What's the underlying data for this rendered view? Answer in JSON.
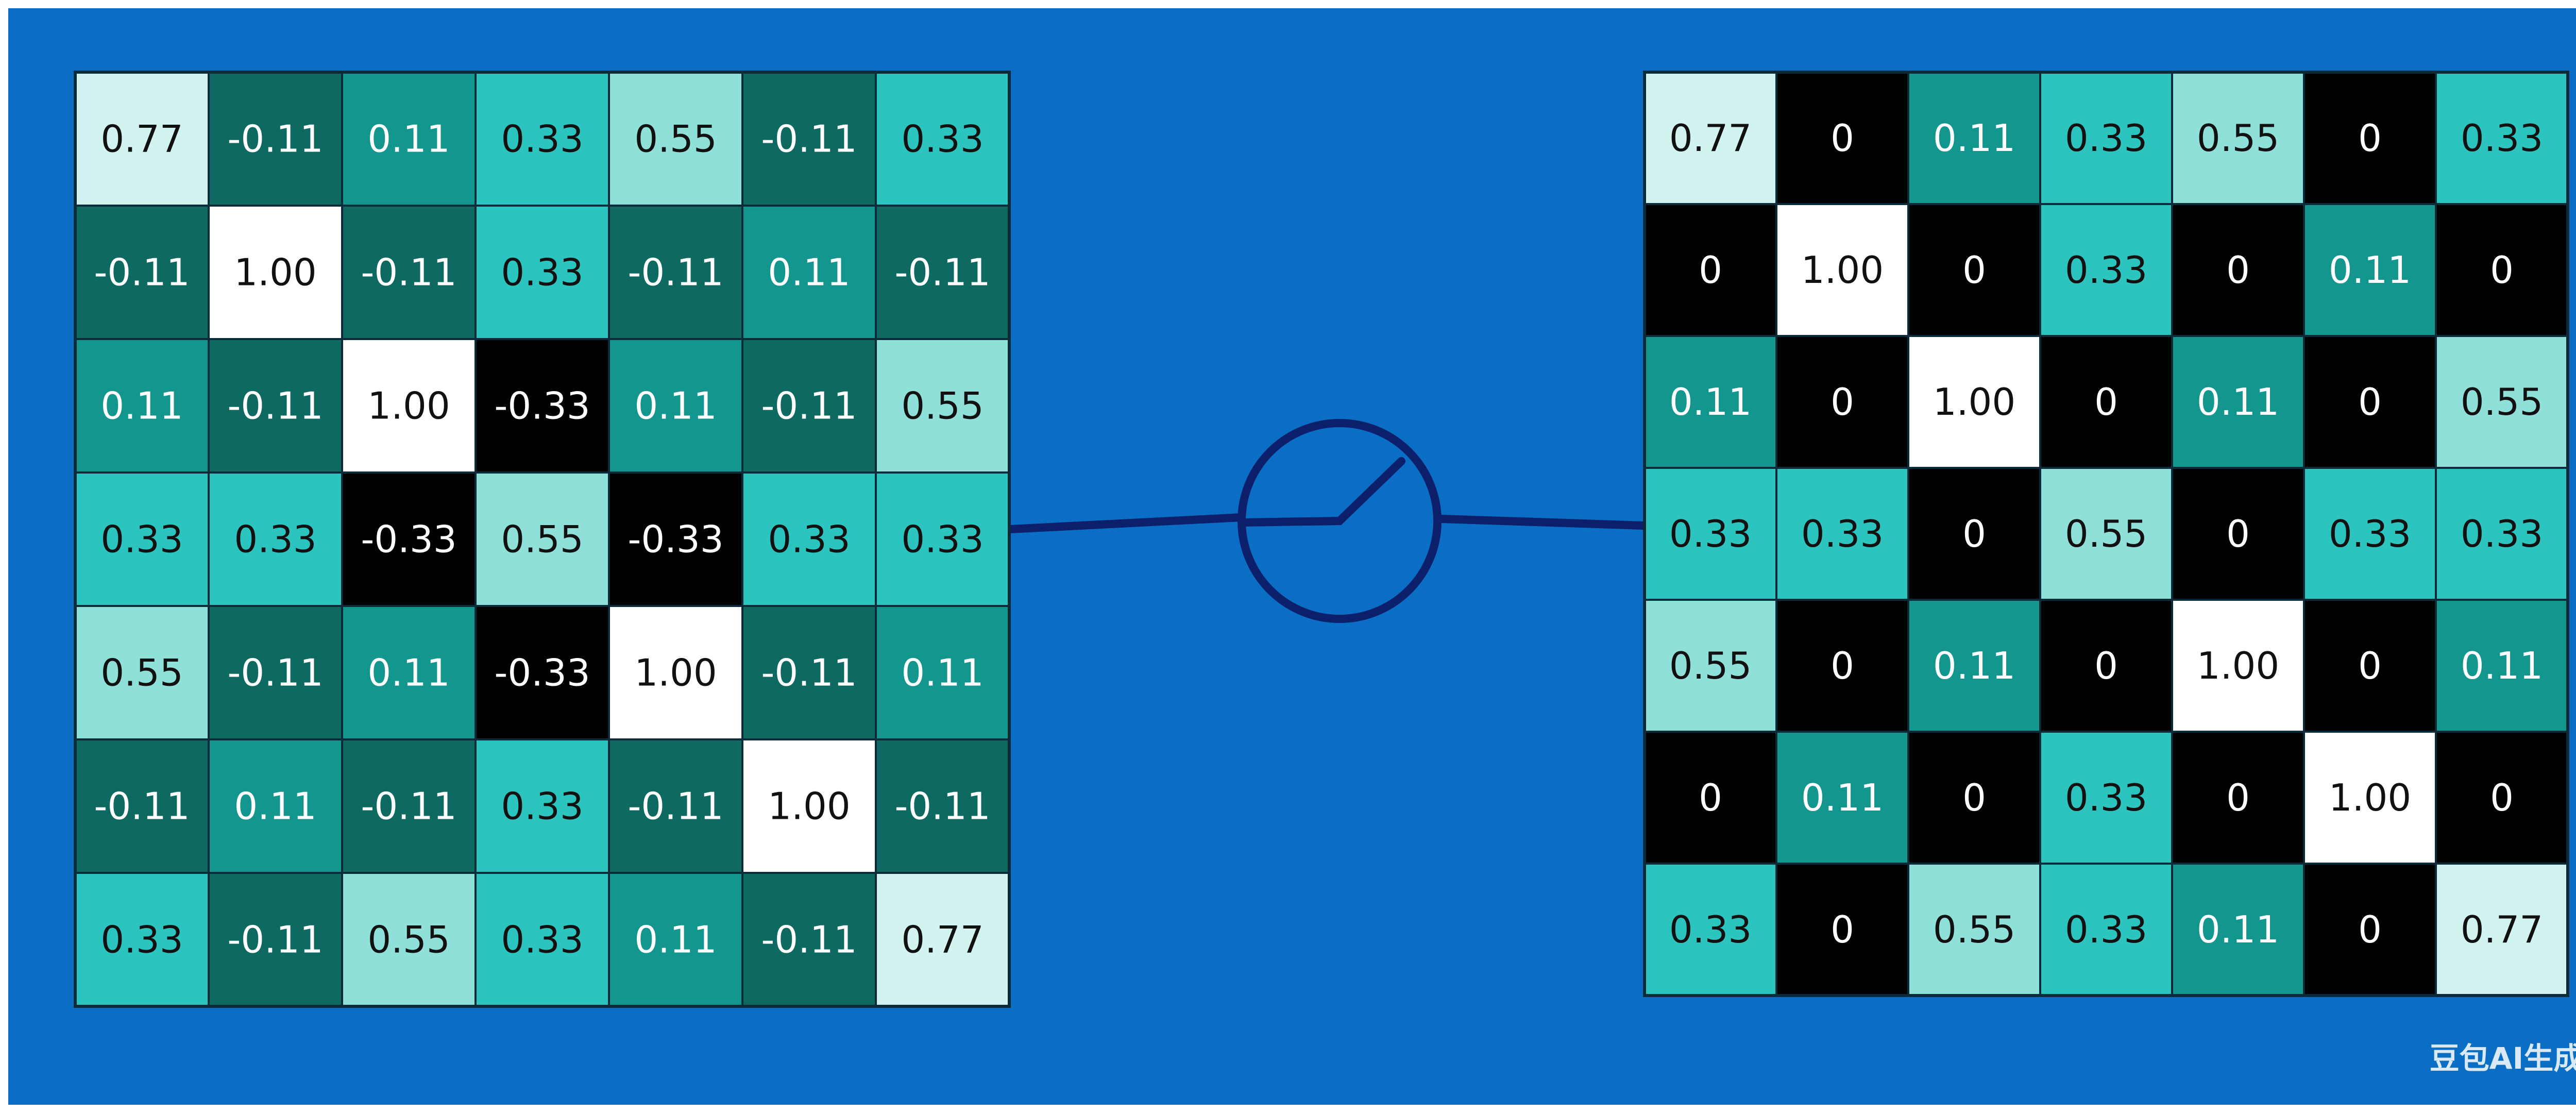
{
  "left": {
    "rows": [
      [
        "0.77",
        "-0.11",
        "0.11",
        "0.33",
        "0.55",
        "-0.11",
        "0.33"
      ],
      [
        "-0.11",
        "1.00",
        "-0.11",
        "0.33",
        "-0.11",
        "0.11",
        "-0.11"
      ],
      [
        "0.11",
        "-0.11",
        "1.00",
        "-0.33",
        "0.11",
        "-0.11",
        "0.55"
      ],
      [
        "0.33",
        "0.33",
        "-0.33",
        "0.55",
        "-0.33",
        "0.33",
        "0.33"
      ],
      [
        "0.55",
        "-0.11",
        "0.11",
        "-0.33",
        "1.00",
        "-0.11",
        "0.11"
      ],
      [
        "-0.11",
        "0.11",
        "-0.11",
        "0.33",
        "-0.11",
        "1.00",
        "-0.11"
      ],
      [
        "0.33",
        "-0.11",
        "0.55",
        "0.33",
        "0.11",
        "-0.11",
        "0.77"
      ]
    ]
  },
  "right": {
    "rows": [
      [
        "0.77",
        "0",
        "0.11",
        "0.33",
        "0.55",
        "0",
        "0.33"
      ],
      [
        "0",
        "1.00",
        "0",
        "0.33",
        "0",
        "0.11",
        "0"
      ],
      [
        "0.11",
        "0",
        "1.00",
        "0",
        "0.11",
        "0",
        "0.55"
      ],
      [
        "0.33",
        "0.33",
        "0",
        "0.55",
        "0",
        "0.33",
        "0.33"
      ],
      [
        "0.55",
        "0",
        "0.11",
        "0",
        "1.00",
        "0",
        "0.11"
      ],
      [
        "0",
        "0.11",
        "0",
        "0.33",
        "0",
        "1.00",
        "0"
      ],
      [
        "0.33",
        "0",
        "0.55",
        "0.33",
        "0.11",
        "0",
        "0.77"
      ]
    ]
  },
  "watermark": "豆包AI生成"
}
